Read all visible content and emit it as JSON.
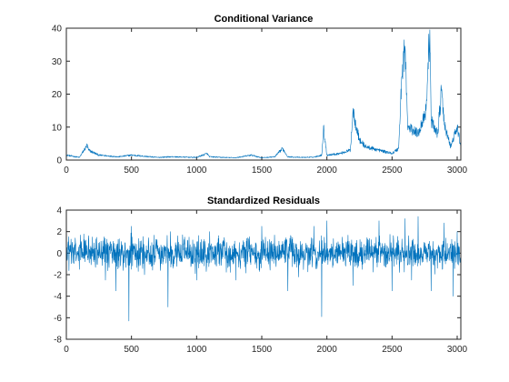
{
  "figure": {
    "background": "#ffffff"
  },
  "chart_data": [
    {
      "type": "line",
      "title": "Conditional Variance",
      "xlabel": "",
      "ylabel": "",
      "xlim": [
        0,
        3028
      ],
      "ylim": [
        0,
        40
      ],
      "xticks": [
        0,
        500,
        1000,
        1500,
        2000,
        2500,
        3000
      ],
      "yticks": [
        0,
        10,
        20,
        30,
        40
      ],
      "grid": false,
      "color": "#0072BD",
      "series": [
        {
          "x": [
            0,
            100,
            160,
            170,
            250,
            400,
            500,
            700,
            800,
            1000,
            1080,
            1100,
            1200,
            1300,
            1420,
            1500,
            1600,
            1660,
            1700,
            1800,
            1900,
            1960,
            1975,
            2000,
            2100,
            2180,
            2200,
            2250,
            2300,
            2400,
            2500,
            2550,
            2580,
            2600,
            2620,
            2700,
            2760,
            2790,
            2800,
            2850,
            2880,
            2900,
            2950,
            3000,
            3028
          ],
          "values": [
            1.5,
            0.8,
            4.5,
            3.0,
            1.5,
            1.0,
            1.5,
            0.8,
            1.0,
            0.8,
            2.0,
            1.0,
            0.8,
            0.7,
            1.5,
            0.7,
            1.0,
            3.5,
            1.0,
            0.8,
            0.9,
            1.5,
            9.5,
            1.5,
            2.0,
            3.0,
            15.0,
            6.0,
            4.0,
            3.0,
            2.0,
            3.5,
            29.0,
            34.0,
            10.0,
            8.0,
            15.0,
            39.5,
            12.0,
            8.0,
            21.0,
            11.0,
            4.0,
            10.0,
            4.0
          ]
        }
      ]
    },
    {
      "type": "line",
      "title": "Standardized Residuals",
      "xlabel": "",
      "ylabel": "",
      "xlim": [
        0,
        3028
      ],
      "ylim": [
        -8,
        4
      ],
      "xticks": [
        0,
        500,
        1000,
        1500,
        2000,
        2500,
        3000
      ],
      "yticks": [
        -8,
        -6,
        -4,
        -2,
        0,
        2,
        4
      ],
      "grid": false,
      "color": "#0072BD",
      "series": [
        {
          "x": [
            0,
            100,
            200,
            300,
            380,
            480,
            500,
            600,
            780,
            800,
            1000,
            1100,
            1300,
            1500,
            1700,
            1900,
            1960,
            2000,
            2200,
            2400,
            2500,
            2600,
            2650,
            2700,
            2800,
            2900,
            2970,
            3000,
            3028
          ],
          "values": [
            0.0,
            -1.5,
            1.5,
            -2.5,
            -3.5,
            -6.3,
            2.5,
            -2.0,
            -5.0,
            2.0,
            -2.5,
            2.0,
            -2.5,
            2.5,
            -3.5,
            2.5,
            -5.9,
            3.0,
            -3.0,
            3.0,
            -3.5,
            3.2,
            -2.5,
            3.4,
            -3.5,
            2.8,
            -4.0,
            2.0,
            -1.0
          ]
        }
      ]
    }
  ]
}
